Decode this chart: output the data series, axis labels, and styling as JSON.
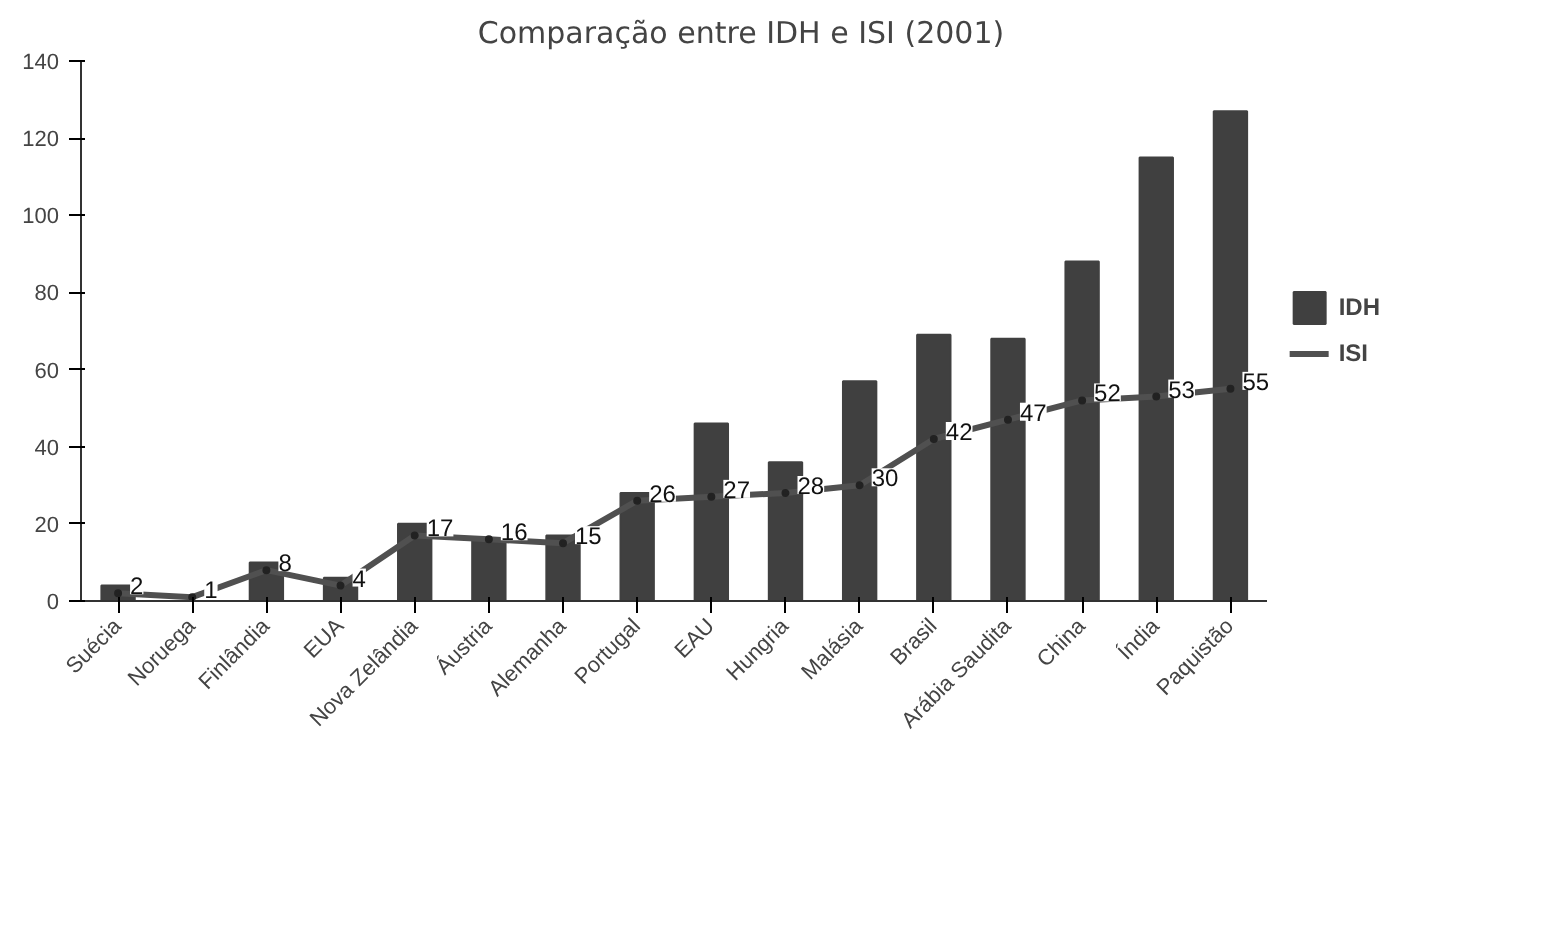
{
  "chart_data": {
    "type": "bar",
    "title": "Comparação entre IDH e ISI (2001)",
    "categories": [
      "Suécia",
      "Noruega",
      "Finlândia",
      "EUA",
      "Nova Zelândia",
      "Áustria",
      "Alemanha",
      "Portugal",
      "EAU",
      "Hungria",
      "Malásia",
      "Brasil",
      "Arábia Saudita",
      "China",
      "Índia",
      "Paquistão"
    ],
    "series": [
      {
        "name": "IDH",
        "color": "#404040",
        "values": [
          4,
          null,
          10,
          6,
          20,
          16,
          17,
          28,
          46,
          36,
          57,
          69,
          68,
          88,
          115,
          127
        ]
      },
      {
        "name": "ISI",
        "type": "line",
        "color": "#505050",
        "marker": "circle",
        "data_labels": true,
        "values": [
          2,
          1,
          8,
          4,
          17,
          16,
          15,
          26,
          27,
          28,
          30,
          42,
          47,
          52,
          53,
          55
        ]
      }
    ],
    "ylim": [
      0,
      140
    ],
    "yticks": [
      0,
      20,
      40,
      60,
      80,
      100,
      120,
      140
    ],
    "grid": false,
    "legend": "right"
  }
}
